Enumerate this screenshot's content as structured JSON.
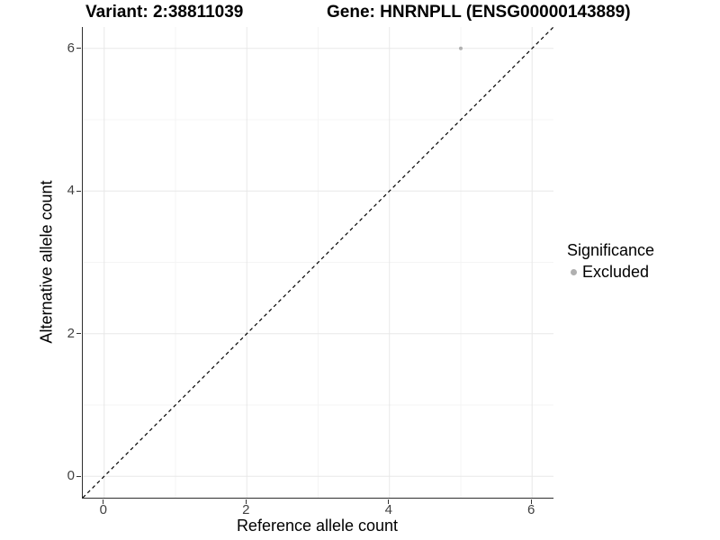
{
  "figure": {
    "titles": {
      "variant": "Variant: 2:38811039",
      "gene": "Gene: HNRNPLL (ENSG00000143889)"
    }
  },
  "legend": {
    "title": "Significance",
    "items": [
      {
        "label": "Excluded",
        "color": "#b0b0b0"
      }
    ]
  },
  "colors": {
    "background": "#ffffff",
    "axis_line": "#2f2f2f",
    "tick_mark": "#333333",
    "tick_text": "#404040",
    "grid_major": "#e8e8e8",
    "grid_minor": "#f4f4f4",
    "point": "#b0b0b0",
    "identity_line": "#000000"
  },
  "chart_data": {
    "type": "scatter",
    "title": "Variant: 2:38811039    Gene: HNRNPLL (ENSG00000143889)",
    "xlabel": "Reference allele count",
    "ylabel": "Alternative allele count",
    "xlim": [
      -0.3,
      6.3
    ],
    "ylim": [
      -0.3,
      6.3
    ],
    "x_major_ticks": [
      0,
      2,
      4,
      6
    ],
    "x_minor_ticks": [
      1,
      3,
      5
    ],
    "y_major_ticks": [
      0,
      2,
      4,
      6
    ],
    "y_minor_ticks": [
      1,
      3,
      5
    ],
    "x_tick_labels": [
      "0",
      "2",
      "4",
      "6"
    ],
    "y_tick_labels": [
      "0",
      "2",
      "4",
      "6"
    ],
    "grid": "major-and-minor",
    "legend_position": "right",
    "series": [
      {
        "name": "Excluded",
        "color": "#b0b0b0",
        "points": [
          {
            "x": 5,
            "y": 6
          }
        ]
      }
    ],
    "annotations": [
      {
        "type": "line",
        "label": "identity-line y=x",
        "style": "dashed",
        "color": "#000000",
        "from": [
          -0.3,
          -0.3
        ],
        "to": [
          6.3,
          6.3
        ]
      }
    ]
  }
}
